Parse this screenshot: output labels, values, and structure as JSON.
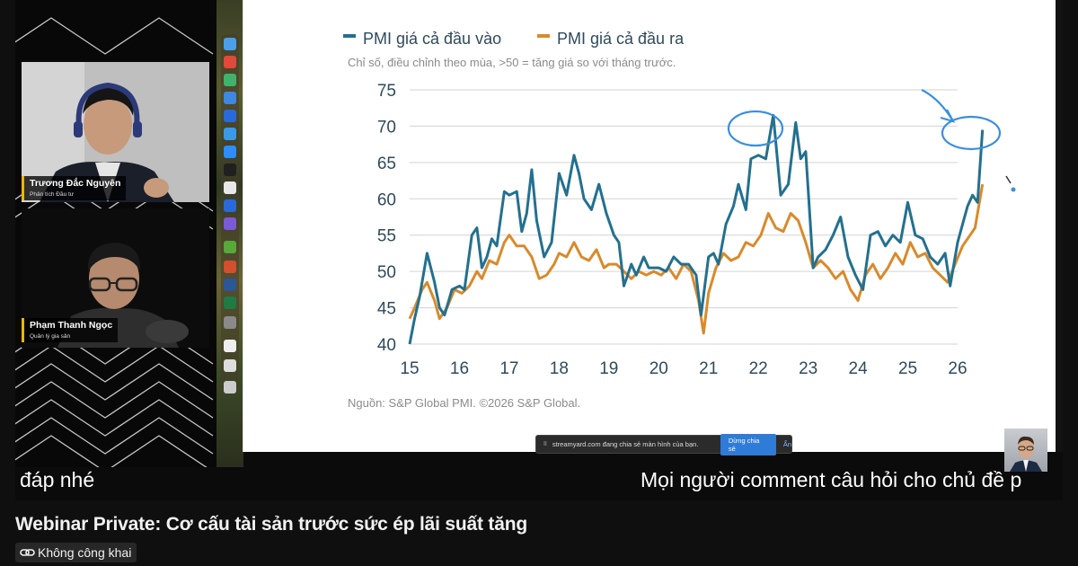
{
  "video": {
    "participants": [
      {
        "name": "Trương Đắc Nguyên",
        "role": "Phân tích Đầu tư"
      },
      {
        "name": "Phạm Thanh Ngọc",
        "role": "Quản lý gia sản"
      }
    ],
    "share_bar": {
      "pause_icon": "pause-icon",
      "message": "streamyard.com đang chia sẻ màn hình của bạn.",
      "stop_label": "Dừng chia sẻ",
      "hide_label": "Ẩn"
    },
    "captions": {
      "left": "đáp nhé",
      "right": "Mọi người comment câu hỏi cho chủ đề p"
    },
    "annotation_color": "#3a8fe0"
  },
  "video_title": "Webinar Private: Cơ cấu tài sản trước sức ép lãi suất tăng",
  "visibility": {
    "icon": "link-icon",
    "label": "Không công khai"
  },
  "chart_data": {
    "type": "line",
    "subtitle": "Chỉ số, điều chỉnh theo mùa, >50 = tăng giá so với tháng trước.",
    "source": "Nguồn: S&P Global PMI. ©2026 S&P Global.",
    "ylim": [
      40,
      75
    ],
    "yticks": [
      40,
      45,
      50,
      55,
      60,
      65,
      70,
      75
    ],
    "xlim": [
      15,
      26
    ],
    "xticks": [
      "15",
      "16",
      "17",
      "18",
      "19",
      "20",
      "21",
      "22",
      "23",
      "24",
      "25",
      "26"
    ],
    "grid": true,
    "legend_position": "top",
    "series": [
      {
        "name": "PMI giá cả đầu vào",
        "color": "#23708f",
        "points": [
          [
            15.0,
            40.0
          ],
          [
            15.1,
            43.5
          ],
          [
            15.2,
            46.5
          ],
          [
            15.35,
            52.5
          ],
          [
            15.5,
            48.5
          ],
          [
            15.6,
            45.0
          ],
          [
            15.7,
            44.0
          ],
          [
            15.85,
            47.5
          ],
          [
            16.0,
            48.0
          ],
          [
            16.1,
            47.5
          ],
          [
            16.25,
            55.0
          ],
          [
            16.35,
            56.0
          ],
          [
            16.45,
            50.5
          ],
          [
            16.55,
            52.0
          ],
          [
            16.65,
            54.5
          ],
          [
            16.75,
            53.5
          ],
          [
            16.9,
            61.0
          ],
          [
            17.0,
            60.5
          ],
          [
            17.15,
            61.0
          ],
          [
            17.25,
            55.5
          ],
          [
            17.35,
            58.0
          ],
          [
            17.45,
            64.0
          ],
          [
            17.55,
            57.0
          ],
          [
            17.7,
            52.0
          ],
          [
            17.85,
            54.0
          ],
          [
            18.0,
            63.5
          ],
          [
            18.15,
            60.5
          ],
          [
            18.3,
            66.0
          ],
          [
            18.4,
            63.5
          ],
          [
            18.5,
            60.0
          ],
          [
            18.65,
            58.5
          ],
          [
            18.8,
            62.0
          ],
          [
            18.95,
            58.0
          ],
          [
            19.1,
            55.0
          ],
          [
            19.2,
            54.0
          ],
          [
            19.3,
            48.0
          ],
          [
            19.45,
            51.0
          ],
          [
            19.55,
            49.5
          ],
          [
            19.7,
            52.0
          ],
          [
            19.8,
            50.5
          ],
          [
            20.0,
            50.5
          ],
          [
            20.15,
            50.0
          ],
          [
            20.3,
            52.0
          ],
          [
            20.45,
            51.0
          ],
          [
            20.6,
            51.0
          ],
          [
            20.75,
            49.5
          ],
          [
            20.85,
            44.0
          ],
          [
            21.0,
            52.0
          ],
          [
            21.1,
            52.5
          ],
          [
            21.2,
            51.0
          ],
          [
            21.35,
            56.5
          ],
          [
            21.5,
            59.0
          ],
          [
            21.6,
            62.0
          ],
          [
            21.75,
            58.5
          ],
          [
            21.85,
            65.5
          ],
          [
            22.0,
            66.0
          ],
          [
            22.15,
            65.5
          ],
          [
            22.3,
            71.5
          ],
          [
            22.45,
            60.5
          ],
          [
            22.6,
            62.0
          ],
          [
            22.75,
            70.5
          ],
          [
            22.85,
            65.5
          ],
          [
            22.95,
            66.5
          ],
          [
            23.1,
            50.5
          ],
          [
            23.2,
            52.0
          ],
          [
            23.35,
            53.0
          ],
          [
            23.5,
            55.0
          ],
          [
            23.65,
            57.5
          ],
          [
            23.8,
            52.0
          ],
          [
            23.95,
            49.5
          ],
          [
            24.1,
            47.5
          ],
          [
            24.25,
            55.0
          ],
          [
            24.4,
            55.5
          ],
          [
            24.55,
            53.5
          ],
          [
            24.7,
            55.0
          ],
          [
            24.85,
            54.0
          ],
          [
            25.0,
            59.5
          ],
          [
            25.15,
            55.0
          ],
          [
            25.3,
            54.5
          ],
          [
            25.45,
            52.0
          ],
          [
            25.6,
            51.0
          ],
          [
            25.75,
            52.5
          ],
          [
            25.85,
            48.0
          ],
          [
            26.0,
            54.0
          ],
          [
            26.1,
            56.5
          ],
          [
            26.2,
            59.0
          ],
          [
            26.3,
            60.5
          ],
          [
            26.4,
            59.5
          ],
          [
            26.5,
            69.5
          ]
        ]
      },
      {
        "name": "PMI giá cả đầu ra",
        "color": "#d98a2b",
        "points": [
          [
            15.0,
            43.5
          ],
          [
            15.1,
            45.0
          ],
          [
            15.25,
            47.5
          ],
          [
            15.35,
            48.5
          ],
          [
            15.5,
            46.0
          ],
          [
            15.6,
            43.5
          ],
          [
            15.75,
            45.0
          ],
          [
            15.9,
            47.5
          ],
          [
            16.05,
            47.0
          ],
          [
            16.2,
            48.0
          ],
          [
            16.35,
            50.0
          ],
          [
            16.45,
            49.0
          ],
          [
            16.6,
            51.5
          ],
          [
            16.75,
            51.0
          ],
          [
            16.9,
            54.0
          ],
          [
            17.0,
            55.0
          ],
          [
            17.15,
            53.5
          ],
          [
            17.3,
            53.5
          ],
          [
            17.45,
            52.0
          ],
          [
            17.6,
            49.0
          ],
          [
            17.75,
            49.5
          ],
          [
            17.9,
            51.0
          ],
          [
            18.0,
            52.5
          ],
          [
            18.15,
            52.0
          ],
          [
            18.3,
            54.0
          ],
          [
            18.45,
            52.0
          ],
          [
            18.6,
            51.5
          ],
          [
            18.75,
            53.0
          ],
          [
            18.9,
            50.5
          ],
          [
            19.0,
            51.0
          ],
          [
            19.15,
            51.0
          ],
          [
            19.3,
            50.0
          ],
          [
            19.45,
            49.0
          ],
          [
            19.6,
            50.0
          ],
          [
            19.75,
            49.5
          ],
          [
            19.9,
            50.0
          ],
          [
            20.05,
            49.5
          ],
          [
            20.2,
            50.5
          ],
          [
            20.35,
            49.0
          ],
          [
            20.5,
            51.0
          ],
          [
            20.65,
            50.0
          ],
          [
            20.8,
            46.0
          ],
          [
            20.9,
            41.5
          ],
          [
            21.0,
            47.0
          ],
          [
            21.15,
            50.5
          ],
          [
            21.3,
            52.5
          ],
          [
            21.45,
            51.5
          ],
          [
            21.6,
            52.0
          ],
          [
            21.75,
            54.0
          ],
          [
            21.9,
            53.5
          ],
          [
            22.05,
            55.0
          ],
          [
            22.2,
            58.0
          ],
          [
            22.35,
            56.0
          ],
          [
            22.5,
            55.5
          ],
          [
            22.65,
            58.0
          ],
          [
            22.8,
            57.0
          ],
          [
            22.95,
            54.0
          ],
          [
            23.1,
            50.5
          ],
          [
            23.25,
            51.5
          ],
          [
            23.4,
            50.5
          ],
          [
            23.55,
            49.0
          ],
          [
            23.7,
            50.0
          ],
          [
            23.85,
            47.5
          ],
          [
            24.0,
            46.0
          ],
          [
            24.15,
            49.5
          ],
          [
            24.3,
            51.0
          ],
          [
            24.45,
            49.0
          ],
          [
            24.6,
            50.5
          ],
          [
            24.75,
            52.5
          ],
          [
            24.9,
            51.0
          ],
          [
            25.05,
            54.0
          ],
          [
            25.2,
            52.0
          ],
          [
            25.35,
            52.5
          ],
          [
            25.5,
            50.5
          ],
          [
            25.65,
            49.5
          ],
          [
            25.8,
            48.5
          ],
          [
            25.95,
            51.0
          ],
          [
            26.1,
            53.5
          ],
          [
            26.25,
            55.0
          ],
          [
            26.35,
            56.0
          ],
          [
            26.5,
            62.0
          ]
        ]
      }
    ]
  }
}
